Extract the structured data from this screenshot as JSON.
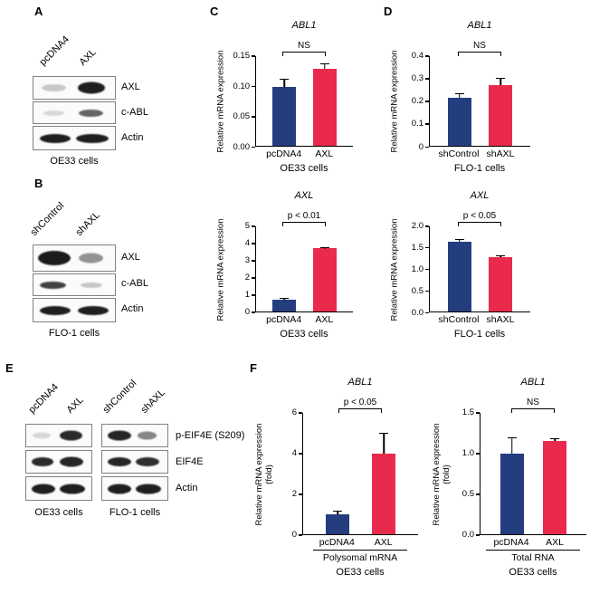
{
  "colors": {
    "control_bar": "#233d7f",
    "treatment_bar": "#e92a4d"
  },
  "panels": {
    "A": {
      "label": "A",
      "lanes": [
        "pcDNA4",
        "AXL"
      ],
      "rows": [
        "AXL",
        "c-ABL",
        "Actin"
      ],
      "cells": "OE33 cells"
    },
    "B": {
      "label": "B",
      "lanes": [
        "shControl",
        "shAXL"
      ],
      "rows": [
        "AXL",
        "c-ABL",
        "Actin"
      ],
      "cells": "FLO-1 cells"
    },
    "C": {
      "label": "C"
    },
    "D": {
      "label": "D"
    },
    "E": {
      "label": "E",
      "lanes": [
        "pcDNA4",
        "AXL",
        "shControl",
        "shAXL"
      ],
      "rows": [
        "p-EIF4E (S209)",
        "EIF4E",
        "Actin"
      ],
      "cells": [
        "OE33 cells",
        "FLO-1 cells"
      ]
    },
    "F": {
      "label": "F"
    }
  },
  "chart_data": [
    {
      "id": "C-top",
      "type": "bar",
      "title": "ABL1",
      "ylabel": "Relative mRNA expression",
      "categories": [
        "pcDNA4",
        "AXL"
      ],
      "values": [
        0.099,
        0.129
      ],
      "errors": [
        0.013,
        0.009
      ],
      "significance": "NS",
      "yticks": [
        "0.15",
        "0.10",
        "0.05",
        "0.00"
      ],
      "ymax": 0.15,
      "cells": "OE33 cells"
    },
    {
      "id": "C-bottom",
      "type": "bar",
      "title": "AXL",
      "ylabel": "Relative mRNA expression",
      "categories": [
        "pcDNA4",
        "AXL"
      ],
      "values": [
        0.7,
        3.7
      ],
      "errors": [
        0.12,
        0.1
      ],
      "significance": "p < 0.01",
      "yticks": [
        "5",
        "4",
        "3",
        "2",
        "1",
        "0"
      ],
      "ymax": 5,
      "cells": "OE33 cells"
    },
    {
      "id": "D-top",
      "type": "bar",
      "title": "ABL1",
      "ylabel": "Relative mRNA expression",
      "categories": [
        "shControl",
        "shAXL"
      ],
      "values": [
        0.215,
        0.27
      ],
      "errors": [
        0.02,
        0.035
      ],
      "significance": "NS",
      "yticks": [
        "0.4",
        "0.3",
        "0.2",
        "0.1",
        "0"
      ],
      "ymax": 0.4,
      "cells": "FLO-1 cells"
    },
    {
      "id": "D-bottom",
      "type": "bar",
      "title": "AXL",
      "ylabel": "Relative mRNA expression",
      "categories": [
        "shControl",
        "shAXL"
      ],
      "values": [
        1.63,
        1.28
      ],
      "errors": [
        0.08,
        0.03
      ],
      "significance": "p < 0.05",
      "yticks": [
        "2.0",
        "1.5",
        "1.0",
        "0.5",
        "0.0"
      ],
      "ymax": 2,
      "cells": "FLO-1 cells"
    },
    {
      "id": "F-left",
      "type": "bar",
      "title": "ABL1",
      "ylabel": "Relative mRNA expression",
      "ylabel2": "(fold)",
      "categories": [
        "pcDNA4",
        "AXL"
      ],
      "values": [
        1.0,
        4.0
      ],
      "errors": [
        0.18,
        1.0
      ],
      "significance": "p < 0.05",
      "yticks": [
        "6",
        "4",
        "2",
        "0"
      ],
      "ymax": 6,
      "group": "Polysomal mRNA",
      "cells": "OE33 cells"
    },
    {
      "id": "F-right",
      "type": "bar",
      "title": "ABL1",
      "ylabel": "Relative mRNA expression",
      "ylabel2": "(fold)",
      "categories": [
        "pcDNA4",
        "AXL"
      ],
      "values": [
        1.0,
        1.15
      ],
      "errors": [
        0.2,
        0.04
      ],
      "significance": "NS",
      "yticks": [
        "1.5",
        "1.0",
        "0.5",
        "0.0"
      ],
      "ymax": 1.5,
      "group": "Total RNA",
      "cells": "OE33 cells"
    }
  ]
}
